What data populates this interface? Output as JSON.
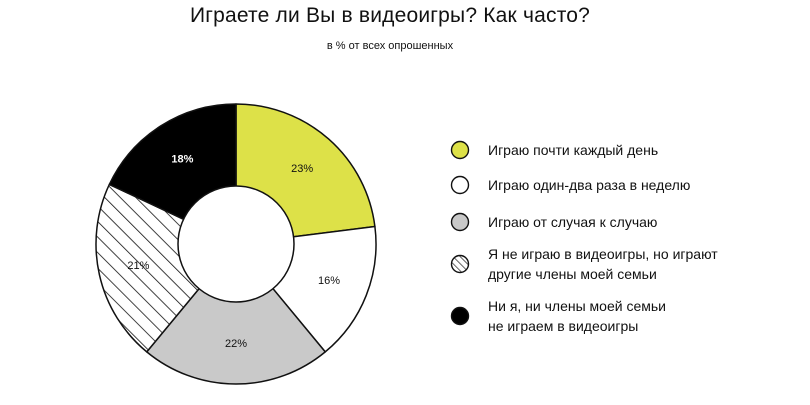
{
  "header": {
    "title": "Играете ли Вы в видеоигры? Как часто?",
    "subtitle": "в % от всех опрошенных"
  },
  "colors": {
    "yellow": "#dde148",
    "white": "#ffffff",
    "gray": "#c9c9c9",
    "black": "#000000",
    "stroke": "#111111"
  },
  "chart_data": {
    "type": "pie",
    "title": "Играете ли Вы в видеоигры? Как часто?",
    "subtitle": "в % от всех опрошенных",
    "donut": true,
    "start_angle": "12 o'clock, clockwise",
    "legend_position": "right",
    "slices": [
      {
        "name": "Играю почти каждый день",
        "value": 23,
        "label": "23%",
        "fill": "yellow"
      },
      {
        "name": "Играю один-два раза в неделю",
        "value": 16,
        "label": "16%",
        "fill": "white"
      },
      {
        "name": "Играю от случая к случаю",
        "value": 22,
        "label": "22%",
        "fill": "gray"
      },
      {
        "name": "Я не играю в видеоигры, но играют другие члены моей семьи",
        "value": 21,
        "label": "21%",
        "fill": "hatch"
      },
      {
        "name": "Ни я, ни члены моей семьи не играем в видеоигры",
        "value": 18,
        "label": "18%",
        "fill": "black"
      }
    ]
  },
  "legend": {
    "items": [
      {
        "lines": [
          "Играю почти каждый день"
        ],
        "fill": "yellow"
      },
      {
        "lines": [
          "Играю один-два раза в неделю"
        ],
        "fill": "white"
      },
      {
        "lines": [
          "Играю от случая к случаю"
        ],
        "fill": "gray"
      },
      {
        "lines": [
          "Я не играю в видеоигры, но играют",
          "другие члены моей семьи"
        ],
        "fill": "hatch"
      },
      {
        "lines": [
          "Ни я, ни члены моей семьи",
          "не играем в видеоигры"
        ],
        "fill": "black"
      }
    ]
  }
}
